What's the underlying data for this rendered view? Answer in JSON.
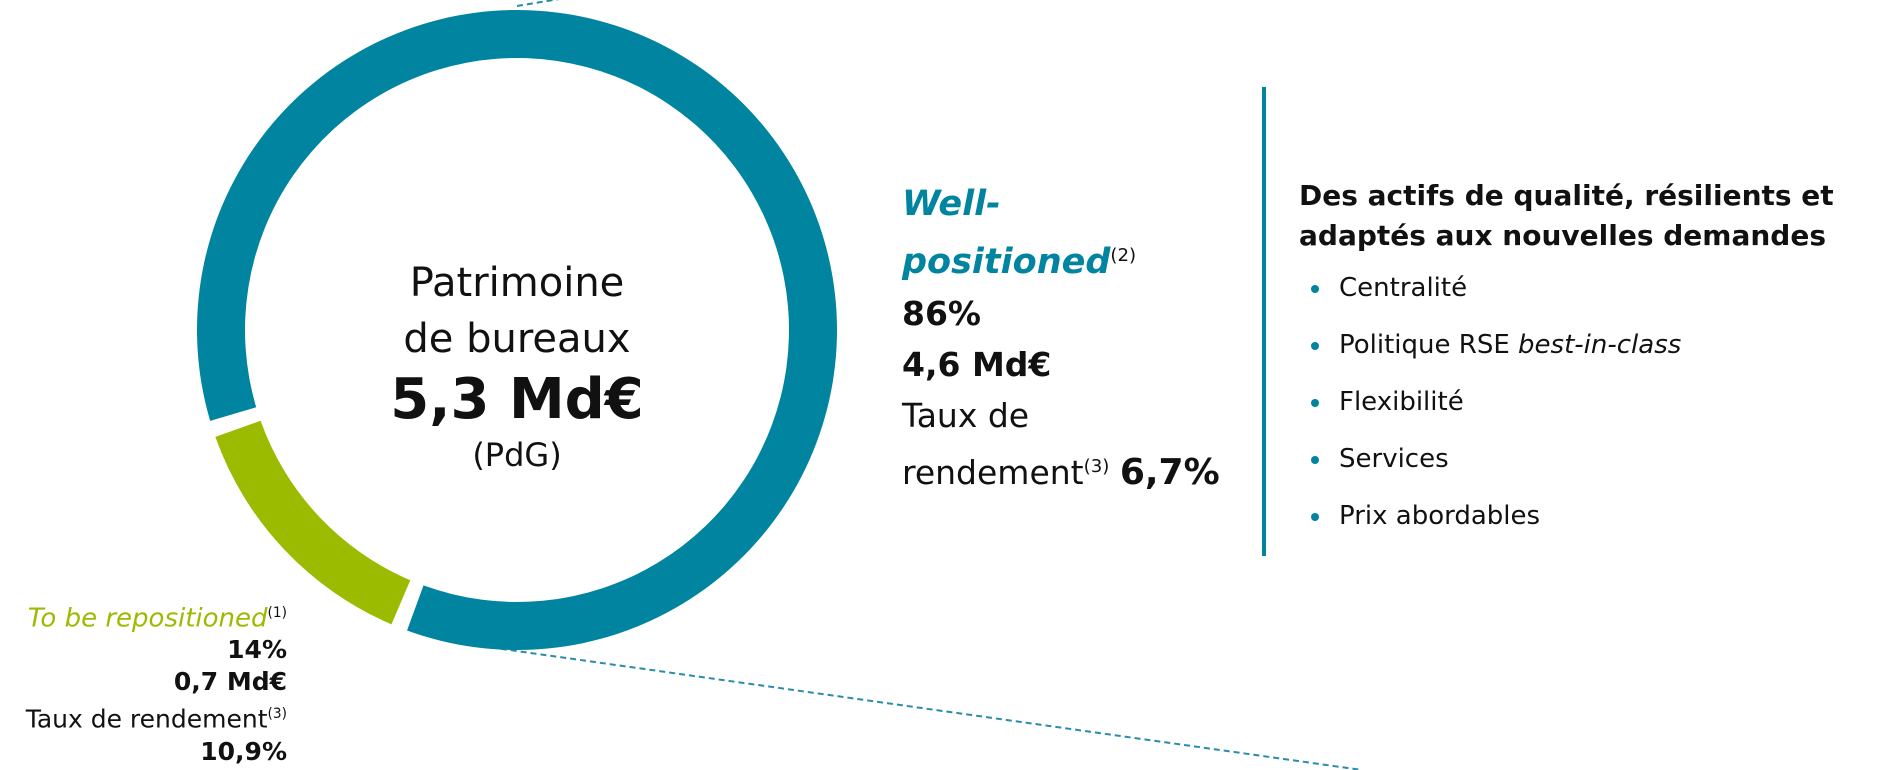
{
  "chart_data": {
    "type": "donut",
    "center": {
      "title": "Patrimoine de bureaux",
      "value": "5,3 Md€",
      "note": "(PdG)"
    },
    "categories": [
      "Well-positioned",
      "To be repositioned"
    ],
    "footnotes": [
      "(2)",
      "(1)"
    ],
    "values": [
      86,
      14
    ],
    "value_labels": [
      "86%",
      "14%"
    ],
    "colors": [
      "#00849f",
      "#9bbb00"
    ],
    "amounts": [
      "4,6 Md€",
      "0,7 Md€"
    ],
    "yield_label": "Taux de rendement",
    "yield_footnote": "(3)",
    "yields": [
      "6,7%",
      "10,9%"
    ]
  },
  "panel": {
    "title": [
      "Des actifs de qualité, résilients et",
      "adaptés aux nouvelles demandes"
    ],
    "bullets": [
      {
        "text": "Centralité"
      },
      {
        "text": "Politique RSE ",
        "em": "best-in-class"
      },
      {
        "text": "Flexibilité"
      },
      {
        "text": "Services"
      },
      {
        "text": "Prix abordables"
      }
    ]
  }
}
